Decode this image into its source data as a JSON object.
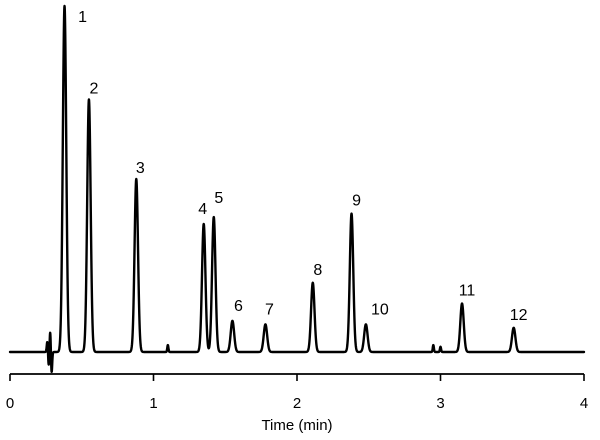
{
  "chart_data": {
    "type": "line",
    "title": "",
    "xlabel": "Time (min)",
    "ylabel": "",
    "xlim": [
      0,
      4
    ],
    "xticks": [
      0,
      1,
      2,
      3,
      4
    ],
    "xtick_labels": [
      "0",
      "1",
      "2",
      "3",
      "4"
    ],
    "grid": false,
    "legend": "none",
    "line_color": "#000000",
    "baseline_noise": [
      {
        "x": 0.26,
        "y": 0.03
      },
      {
        "x": 0.27,
        "y": -0.04
      },
      {
        "x": 0.28,
        "y": 0.06
      },
      {
        "x": 0.29,
        "y": -0.06
      },
      {
        "x": 1.1,
        "y": 0.02
      },
      {
        "x": 2.95,
        "y": 0.02
      },
      {
        "x": 3.0,
        "y": 0.015
      }
    ],
    "peaks": [
      {
        "label": "1",
        "time": 0.38,
        "height": 1.0
      },
      {
        "label": "2",
        "time": 0.55,
        "height": 0.73
      },
      {
        "label": "3",
        "time": 0.88,
        "height": 0.5
      },
      {
        "label": "4",
        "time": 1.35,
        "height": 0.37
      },
      {
        "label": "5",
        "time": 1.42,
        "height": 0.39
      },
      {
        "label": "6",
        "time": 1.55,
        "height": 0.09
      },
      {
        "label": "7",
        "time": 1.78,
        "height": 0.08
      },
      {
        "label": "8",
        "time": 2.11,
        "height": 0.2
      },
      {
        "label": "9",
        "time": 2.38,
        "height": 0.4
      },
      {
        "label": "10",
        "time": 2.48,
        "height": 0.08
      },
      {
        "label": "11",
        "time": 3.15,
        "height": 0.14
      },
      {
        "label": "12",
        "time": 3.51,
        "height": 0.07
      }
    ]
  }
}
